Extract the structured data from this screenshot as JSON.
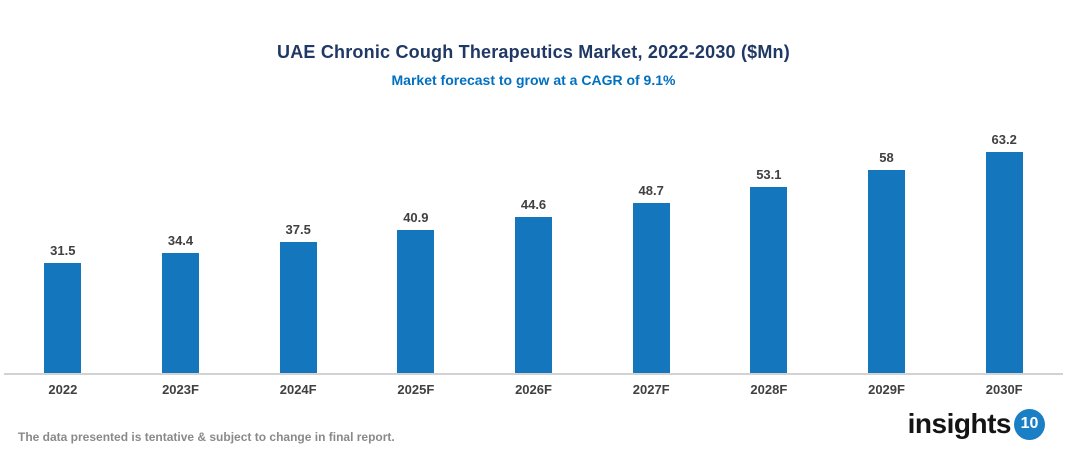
{
  "header": {
    "title": "UAE Chronic Cough Therapeutics Market, 2022-2030 ($Mn)",
    "subtitle": "Market forecast to grow at a CAGR of 9.1%"
  },
  "chart_data": {
    "type": "bar",
    "title": "UAE Chronic Cough Therapeutics Market, 2022-2030 ($Mn)",
    "subtitle": "Market forecast to grow at a CAGR of 9.1%",
    "categories": [
      "2022",
      "2023F",
      "2024F",
      "2025F",
      "2026F",
      "2027F",
      "2028F",
      "2029F",
      "2030F"
    ],
    "values": [
      31.5,
      34.4,
      37.5,
      40.9,
      44.6,
      48.7,
      53.1,
      58,
      63.2
    ],
    "cagr": "9.1%",
    "xlabel": "",
    "ylabel": "",
    "ylim": [
      0,
      70
    ],
    "grid": false,
    "legend": "none",
    "bar_color": "#1477BD"
  },
  "footer": {
    "disclaimer": "The data presented is tentative & subject to change in final report.",
    "logo_text": "insights",
    "logo_number": "10"
  },
  "colors": {
    "title": "#1F3864",
    "subtitle": "#0070C0",
    "bar": "#1477BD",
    "axis_line": "#D2D2D2",
    "data_label": "#404040",
    "disclaimer": "#8A8A8A",
    "logo_badge": "#1B7FC6"
  }
}
